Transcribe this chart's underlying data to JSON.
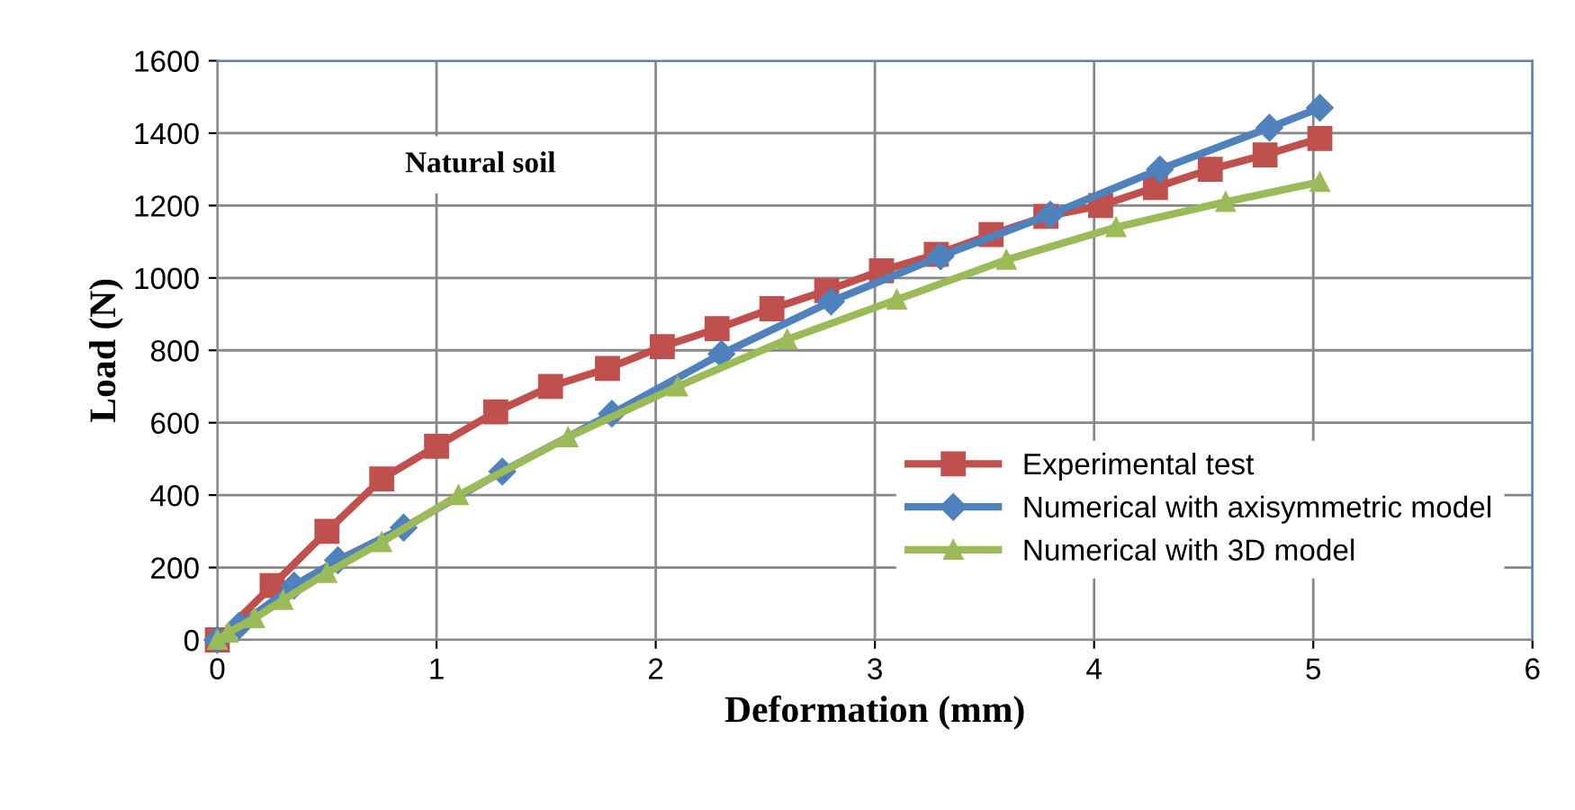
{
  "chart_data": {
    "type": "line",
    "title": "Natural soil",
    "xlabel": "Deformation (mm)",
    "ylabel": "Load (N)",
    "xlim": [
      0,
      6
    ],
    "xticks": [
      0,
      1,
      2,
      3,
      4,
      5,
      6
    ],
    "ylim": [
      0,
      1600
    ],
    "yticks": [
      0,
      200,
      400,
      600,
      800,
      1000,
      1200,
      1400,
      1600
    ],
    "grid": true,
    "legend": "bottom right",
    "series": [
      {
        "name": "Experimental test",
        "color": "#c0504d",
        "marker": "square",
        "x": [
          0,
          0.25,
          0.5,
          0.75,
          1.0,
          1.27,
          1.52,
          1.78,
          2.03,
          2.28,
          2.53,
          2.78,
          3.03,
          3.28,
          3.53,
          3.78,
          4.03,
          4.28,
          4.53,
          4.78,
          5.03
        ],
        "values": [
          0,
          150,
          300,
          445,
          535,
          630,
          700,
          750,
          810,
          860,
          915,
          965,
          1020,
          1065,
          1120,
          1170,
          1200,
          1250,
          1300,
          1340,
          1385
        ]
      },
      {
        "name": "Numerical with axisymmetric model",
        "color": "#4f81bd",
        "marker": "diamond",
        "x": [
          0,
          0.1,
          0.35,
          0.55,
          0.85,
          1.3,
          1.8,
          2.3,
          2.8,
          3.3,
          3.8,
          4.3,
          4.8,
          5.03
        ],
        "values": [
          0,
          40,
          150,
          220,
          310,
          465,
          625,
          790,
          935,
          1060,
          1175,
          1300,
          1415,
          1470
        ]
      },
      {
        "name": "Numerical with 3D model",
        "color": "#9bbb59",
        "marker": "triangle",
        "x": [
          0,
          0.05,
          0.17,
          0.3,
          0.5,
          0.75,
          1.1,
          1.6,
          2.1,
          2.6,
          3.1,
          3.6,
          4.1,
          4.6,
          5.03
        ],
        "values": [
          0,
          20,
          60,
          110,
          185,
          270,
          400,
          560,
          700,
          830,
          940,
          1050,
          1140,
          1210,
          1265
        ]
      }
    ]
  }
}
